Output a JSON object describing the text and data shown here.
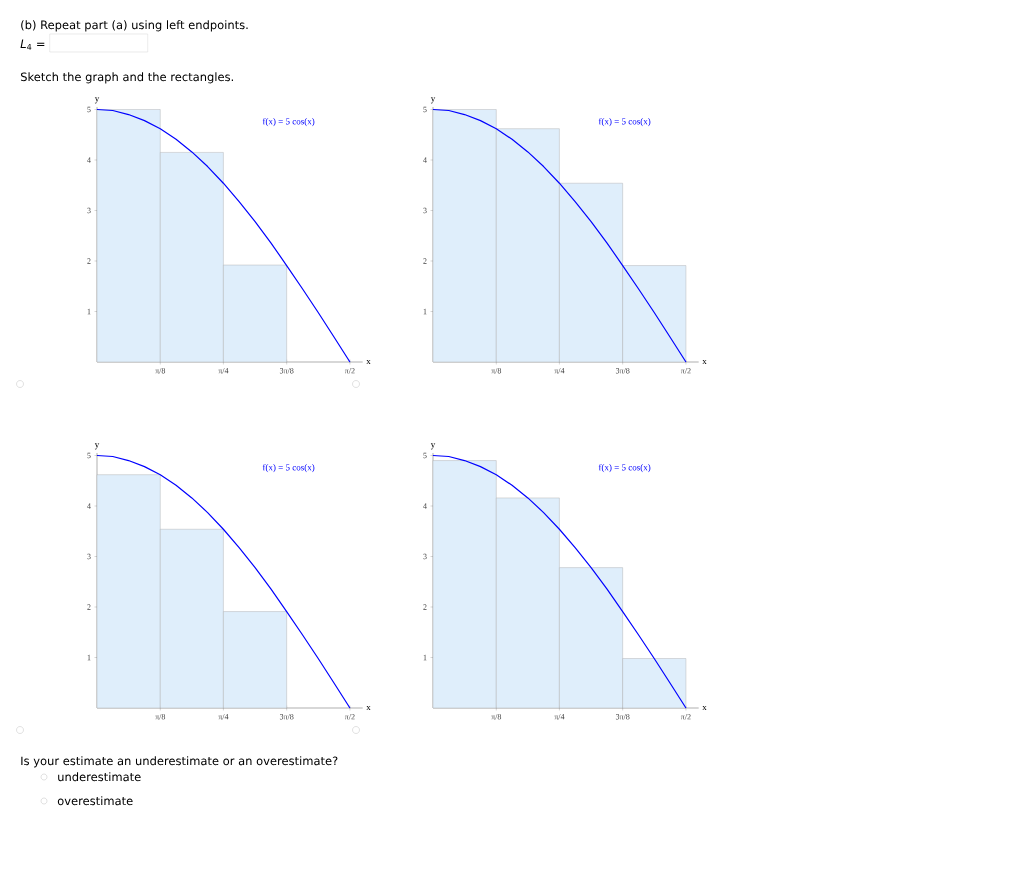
{
  "chart_data": [
    {
      "type": "other",
      "title": "(b) Repeat part (a) using left endpoints.",
      "annotations": [
        "*L*$_{4}$ =",
        "Sketch the graph and the rectangles."
      ]
    },
    {
      "type": "histogram",
      "xlabel": "x",
      "ylabel": "y",
      "xlim": [
        0,
        1.65
      ],
      "ylim": [
        0,
        5.05
      ],
      "xticks": [
        {
          "value": 0.393,
          "label": "π/8"
        },
        {
          "value": 0.785,
          "label": "π/4"
        },
        {
          "value": 1.178,
          "label": "3π/8"
        },
        {
          "value": 1.571,
          "label": "π/2"
        }
      ],
      "yticks": [
        1,
        2,
        3,
        4,
        5
      ],
      "series": [
        {
          "type": "histogram",
          "color": "#dfeefb",
          "bins": [
            0,
            0.393,
            0.785,
            1.178
          ],
          "values": [
            5,
            4.15,
            1.92
          ]
        },
        {
          "type": "line",
          "name": "f(x) = 5 cos(x)",
          "color": "#0000ff",
          "x": [
            0,
            0.098,
            0.196,
            0.295,
            0.393,
            0.491,
            0.589,
            0.687,
            0.785,
            0.884,
            0.982,
            1.08,
            1.178,
            1.276,
            1.374,
            1.473,
            1.571
          ],
          "values": [
            5,
            4.98,
            4.9,
            4.78,
            4.62,
            4.41,
            4.16,
            3.87,
            3.54,
            3.17,
            2.78,
            2.36,
            1.91,
            1.45,
            0.98,
            0.49,
            0
          ]
        }
      ]
    },
    {
      "type": "histogram",
      "xlabel": "x",
      "ylabel": "y",
      "xlim": [
        0,
        1.65
      ],
      "ylim": [
        0,
        5.05
      ],
      "xticks": [
        {
          "value": 0.393,
          "label": "π/8"
        },
        {
          "value": 0.785,
          "label": "π/4"
        },
        {
          "value": 1.178,
          "label": "3π/8"
        },
        {
          "value": 1.571,
          "label": "π/2"
        }
      ],
      "yticks": [
        1,
        2,
        3,
        4,
        5
      ],
      "series": [
        {
          "type": "histogram",
          "color": "#dfeefb",
          "bins": [
            0,
            0.393,
            0.785,
            1.178,
            1.571
          ],
          "values": [
            5,
            4.62,
            3.54,
            1.91
          ]
        },
        {
          "type": "line",
          "name": "f(x) = 5 cos(x)",
          "color": "#0000ff",
          "x": [
            0,
            0.098,
            0.196,
            0.295,
            0.393,
            0.491,
            0.589,
            0.687,
            0.785,
            0.884,
            0.982,
            1.08,
            1.178,
            1.276,
            1.374,
            1.473,
            1.571
          ],
          "values": [
            5,
            4.98,
            4.9,
            4.78,
            4.62,
            4.41,
            4.16,
            3.87,
            3.54,
            3.17,
            2.78,
            2.36,
            1.91,
            1.45,
            0.98,
            0.49,
            0
          ]
        }
      ]
    },
    {
      "type": "histogram",
      "xlabel": "x",
      "ylabel": "y",
      "xlim": [
        0,
        1.65
      ],
      "ylim": [
        0,
        5.05
      ],
      "xticks": [
        {
          "value": 0.393,
          "label": "π/8"
        },
        {
          "value": 0.785,
          "label": "π/4"
        },
        {
          "value": 1.178,
          "label": "3π/8"
        },
        {
          "value": 1.571,
          "label": "π/2"
        }
      ],
      "yticks": [
        1,
        2,
        3,
        4,
        5
      ],
      "series": [
        {
          "type": "histogram",
          "color": "#dfeefb",
          "bins": [
            0,
            0.393,
            0.785,
            1.178
          ],
          "values": [
            4.62,
            3.54,
            1.91
          ]
        },
        {
          "type": "line",
          "name": "f(x) = 5 cos(x)",
          "color": "#0000ff",
          "x": [
            0,
            0.098,
            0.196,
            0.295,
            0.393,
            0.491,
            0.589,
            0.687,
            0.785,
            0.884,
            0.982,
            1.08,
            1.178,
            1.276,
            1.374,
            1.473,
            1.571
          ],
          "values": [
            5,
            4.98,
            4.9,
            4.78,
            4.62,
            4.41,
            4.16,
            3.87,
            3.54,
            3.17,
            2.78,
            2.36,
            1.91,
            1.45,
            0.98,
            0.49,
            0
          ]
        }
      ]
    },
    {
      "type": "histogram",
      "xlabel": "x",
      "ylabel": "y",
      "xlim": [
        0,
        1.65
      ],
      "ylim": [
        0,
        5.05
      ],
      "xticks": [
        {
          "value": 0.393,
          "label": "π/8"
        },
        {
          "value": 0.785,
          "label": "π/4"
        },
        {
          "value": 1.178,
          "label": "3π/8"
        },
        {
          "value": 1.571,
          "label": "π/2"
        }
      ],
      "yticks": [
        1,
        2,
        3,
        4,
        5
      ],
      "series": [
        {
          "type": "histogram",
          "color": "#dfeefb",
          "bins": [
            0,
            0.393,
            0.785,
            1.178,
            1.571
          ],
          "values": [
            4.9,
            4.16,
            2.78,
            0.98
          ]
        },
        {
          "type": "line",
          "name": "f(x) = 5 cos(x)",
          "color": "#0000ff",
          "x": [
            0,
            0.098,
            0.196,
            0.295,
            0.393,
            0.491,
            0.589,
            0.687,
            0.785,
            0.884,
            0.982,
            1.08,
            1.178,
            1.276,
            1.374,
            1.473,
            1.571
          ],
          "values": [
            5,
            4.98,
            4.9,
            4.78,
            4.62,
            4.41,
            4.16,
            3.87,
            3.54,
            3.17,
            2.78,
            2.36,
            1.91,
            1.45,
            0.98,
            0.49,
            0
          ]
        }
      ]
    },
    {
      "type": "other",
      "title": "Is your estimate an underestimate or an overestimate?",
      "annotations": [
        "underestimate",
        "overestimate"
      ]
    }
  ]
}
